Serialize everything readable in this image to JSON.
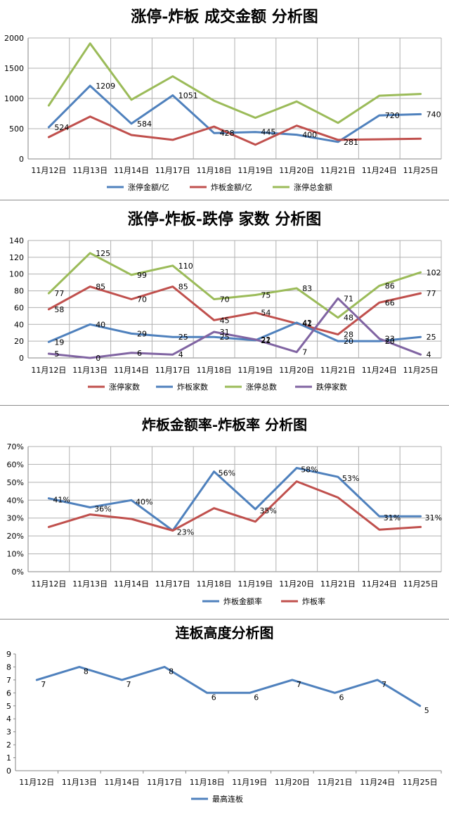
{
  "chart_data": [
    {
      "type": "line",
      "title": "涨停-炸板 成交金额 分析图",
      "categories": [
        "11月12日",
        "11月13日",
        "11月14日",
        "11月17日",
        "11月18日",
        "11月19日",
        "11月20日",
        "11月21日",
        "11月24日",
        "11月25日"
      ],
      "ylim": [
        0,
        2000
      ],
      "yticks": [
        0,
        500,
        1000,
        1500,
        2000
      ],
      "ytick_labels": [
        "0",
        "500",
        "1000",
        "1500",
        "2000"
      ],
      "grid": true,
      "legend_position": "bottom",
      "series": [
        {
          "name": "涨停金额/亿",
          "color": "#4f81bd",
          "values": [
            524,
            1209,
            584,
            1051,
            428,
            445,
            400,
            281,
            720,
            740
          ],
          "labels": [
            "524",
            "1209",
            "584",
            "1051",
            "428",
            "445",
            "400",
            "281",
            "720",
            "740"
          ]
        },
        {
          "name": "炸板金额/亿",
          "color": "#c0504d",
          "values": [
            360,
            700,
            395,
            315,
            535,
            235,
            550,
            315,
            325,
            335
          ],
          "labels": []
        },
        {
          "name": "涨停总金额",
          "color": "#9bbb59",
          "values": [
            884,
            1909,
            979,
            1366,
            963,
            680,
            950,
            596,
            1045,
            1075
          ],
          "labels": []
        }
      ]
    },
    {
      "type": "line",
      "title": "涨停-炸板-跌停 家数 分析图",
      "categories": [
        "11月12日",
        "11月13日",
        "11月14日",
        "11月17日",
        "11月18日",
        "11月19日",
        "11月20日",
        "11月21日",
        "11月24日",
        "11月25日"
      ],
      "ylim": [
        0,
        140
      ],
      "yticks": [
        0,
        20,
        40,
        60,
        80,
        100,
        120,
        140
      ],
      "ytick_labels": [
        "0",
        "20",
        "40",
        "60",
        "80",
        "100",
        "120",
        "140"
      ],
      "grid": true,
      "legend_position": "bottom",
      "series": [
        {
          "name": "涨停家数",
          "color": "#c0504d",
          "values": [
            58,
            85,
            70,
            85,
            45,
            54,
            41,
            28,
            66,
            77
          ],
          "labels": [
            "58",
            "85",
            "70",
            "85",
            "45",
            "54",
            "41",
            "28",
            "66",
            "77"
          ]
        },
        {
          "name": "炸板家数",
          "color": "#4f81bd",
          "values": [
            19,
            40,
            29,
            25,
            25,
            21,
            42,
            20,
            20,
            25
          ],
          "labels": [
            "19",
            "40",
            "29",
            "25",
            "25",
            "21",
            "42",
            "20",
            "20",
            "25"
          ]
        },
        {
          "name": "涨停总数",
          "color": "#9bbb59",
          "values": [
            77,
            125,
            99,
            110,
            70,
            75,
            83,
            48,
            86,
            102
          ],
          "labels": [
            "77",
            "125",
            "99",
            "110",
            "70",
            "75",
            "83",
            "48",
            "86",
            "102"
          ]
        },
        {
          "name": "跌停家数",
          "color": "#8064a2",
          "values": [
            5,
            0,
            6,
            4,
            31,
            22,
            7,
            71,
            23,
            4
          ],
          "labels": [
            "5",
            "0",
            "6",
            "4",
            "31",
            "22",
            "7",
            "71",
            "23",
            "4"
          ]
        }
      ]
    },
    {
      "type": "line",
      "title": "炸板金额率-炸板率 分析图",
      "categories": [
        "11月12日",
        "11月13日",
        "11月14日",
        "11月17日",
        "11月18日",
        "11月19日",
        "11月20日",
        "11月21日",
        "11月24日",
        "11月25日"
      ],
      "ylim": [
        0,
        70
      ],
      "yticks": [
        0,
        10,
        20,
        30,
        40,
        50,
        60,
        70
      ],
      "ytick_labels": [
        "0%",
        "10%",
        "20%",
        "30%",
        "40%",
        "50%",
        "60%",
        "70%"
      ],
      "grid": true,
      "legend_position": "bottom",
      "series": [
        {
          "name": "炸板金额率",
          "color": "#4f81bd",
          "values": [
            41,
            36,
            40,
            23,
            56,
            35,
            58,
            53,
            31,
            31
          ],
          "labels": [
            "41%",
            "36%",
            "40%",
            "23%",
            "56%",
            "35%",
            "58%",
            "53%",
            "31%",
            "31%"
          ]
        },
        {
          "name": "炸板率",
          "color": "#c0504d",
          "values": [
            25,
            32,
            29.5,
            23,
            35.5,
            28,
            50.5,
            41.5,
            23.5,
            25
          ],
          "labels": []
        }
      ]
    },
    {
      "type": "line",
      "title": "连板高度分析图",
      "categories": [
        "11月12日",
        "11月13日",
        "11月14日",
        "11月17日",
        "11月18日",
        "11月19日",
        "11月20日",
        "11月21日",
        "11月24日",
        "11月25日"
      ],
      "ylim": [
        0,
        9
      ],
      "yticks": [
        0,
        1,
        2,
        3,
        4,
        5,
        6,
        7,
        8,
        9
      ],
      "ytick_labels": [
        "0",
        "1",
        "2",
        "3",
        "4",
        "5",
        "6",
        "7",
        "8",
        "9"
      ],
      "grid": false,
      "legend_position": "bottom",
      "series": [
        {
          "name": "最高连板",
          "color": "#4f81bd",
          "values": [
            7,
            8,
            7,
            8,
            6,
            6,
            7,
            6,
            7,
            5
          ],
          "labels": [
            "7",
            "8",
            "7",
            "8",
            "6",
            "6",
            "7",
            "6",
            "7",
            "5"
          ]
        }
      ]
    }
  ]
}
